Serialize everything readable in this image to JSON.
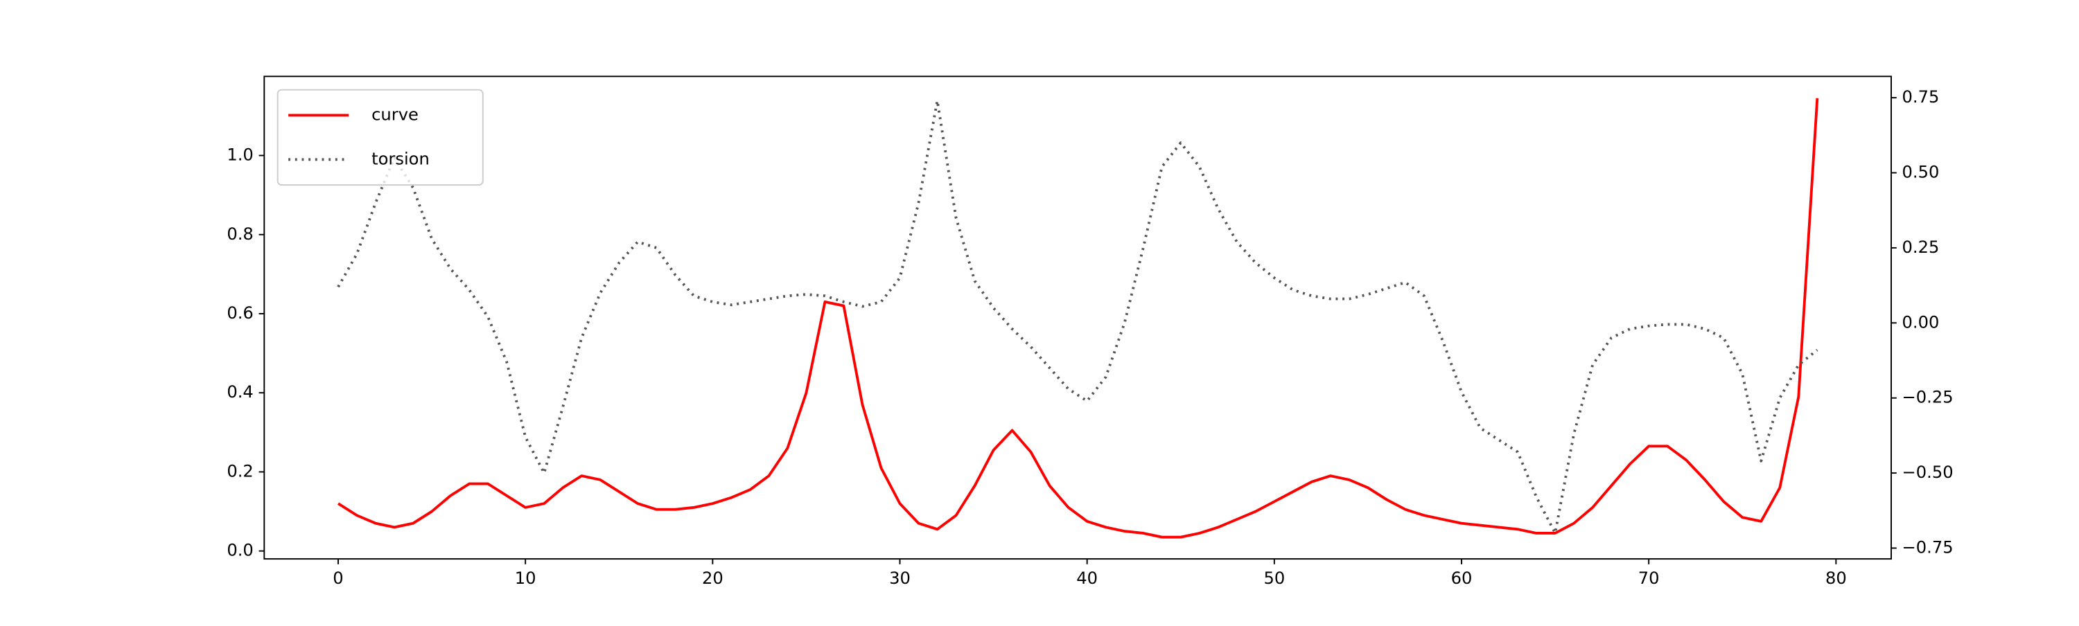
{
  "chart_data": {
    "type": "line",
    "x": [
      0,
      1,
      2,
      3,
      4,
      5,
      6,
      7,
      8,
      9,
      10,
      11,
      12,
      13,
      14,
      15,
      16,
      17,
      18,
      19,
      20,
      21,
      22,
      23,
      24,
      25,
      26,
      27,
      28,
      29,
      30,
      31,
      32,
      33,
      34,
      35,
      36,
      37,
      38,
      39,
      40,
      41,
      42,
      43,
      44,
      45,
      46,
      47,
      48,
      49,
      50,
      51,
      52,
      53,
      54,
      55,
      56,
      57,
      58,
      59,
      60,
      61,
      62,
      63,
      64,
      65,
      66,
      67,
      68,
      69,
      70,
      71,
      72,
      73,
      74,
      75,
      76,
      77,
      78,
      79
    ],
    "series": [
      {
        "name": "curve",
        "color": "#ff0000",
        "linestyle": "solid",
        "axis": "y",
        "values": [
          0.12,
          0.09,
          0.07,
          0.06,
          0.07,
          0.1,
          0.14,
          0.17,
          0.17,
          0.14,
          0.11,
          0.12,
          0.16,
          0.19,
          0.18,
          0.15,
          0.12,
          0.105,
          0.105,
          0.11,
          0.12,
          0.135,
          0.155,
          0.19,
          0.26,
          0.4,
          0.63,
          0.62,
          0.37,
          0.21,
          0.12,
          0.07,
          0.055,
          0.09,
          0.165,
          0.255,
          0.305,
          0.25,
          0.165,
          0.11,
          0.075,
          0.06,
          0.05,
          0.045,
          0.035,
          0.035,
          0.045,
          0.06,
          0.08,
          0.1,
          0.125,
          0.15,
          0.175,
          0.19,
          0.18,
          0.16,
          0.13,
          0.105,
          0.09,
          0.08,
          0.07,
          0.065,
          0.06,
          0.055,
          0.045,
          0.045,
          0.07,
          0.11,
          0.165,
          0.22,
          0.265,
          0.265,
          0.23,
          0.18,
          0.125,
          0.085,
          0.075,
          0.16,
          0.39,
          1.145
        ]
      },
      {
        "name": "torsion",
        "color": "#555555",
        "linestyle": "dotted",
        "axis": "y2",
        "values": [
          0.12,
          0.23,
          0.4,
          0.55,
          0.45,
          0.28,
          0.18,
          0.11,
          0.02,
          -0.13,
          -0.38,
          -0.5,
          -0.28,
          -0.05,
          0.1,
          0.2,
          0.27,
          0.25,
          0.16,
          0.09,
          0.07,
          0.06,
          0.07,
          0.08,
          0.09,
          0.095,
          0.09,
          0.07,
          0.055,
          0.07,
          0.15,
          0.4,
          0.74,
          0.35,
          0.14,
          0.05,
          -0.02,
          -0.08,
          -0.15,
          -0.22,
          -0.26,
          -0.18,
          0.0,
          0.25,
          0.52,
          0.6,
          0.52,
          0.38,
          0.27,
          0.2,
          0.15,
          0.11,
          0.09,
          0.08,
          0.08,
          0.095,
          0.115,
          0.135,
          0.09,
          -0.06,
          -0.23,
          -0.35,
          -0.39,
          -0.43,
          -0.58,
          -0.7,
          -0.37,
          -0.14,
          -0.05,
          -0.02,
          -0.01,
          -0.005,
          -0.005,
          -0.02,
          -0.05,
          -0.17,
          -0.46,
          -0.25,
          -0.14,
          -0.09
        ]
      }
    ],
    "xlim": [
      -3.95,
      82.95
    ],
    "xticks": [
      0,
      10,
      20,
      30,
      40,
      50,
      60,
      70,
      80
    ],
    "ylim": [
      -0.02,
      1.2
    ],
    "yticks": [
      {
        "value": 0,
        "label": "0.0"
      },
      0.2,
      0.4,
      0.6,
      0.8,
      {
        "value": 1,
        "label": "1.0"
      }
    ],
    "y2lim": [
      -0.786,
      0.821
    ],
    "y2ticks": [
      {
        "value": -0.75,
        "label": "−0.75"
      },
      {
        "value": -0.5,
        "label": "−0.50"
      },
      {
        "value": -0.25,
        "label": "−0.25"
      },
      {
        "value": 0,
        "label": "0.00"
      },
      0.25,
      {
        "value": 0.5,
        "label": "0.50"
      },
      0.75
    ],
    "grid": false,
    "legend": "upper left"
  }
}
